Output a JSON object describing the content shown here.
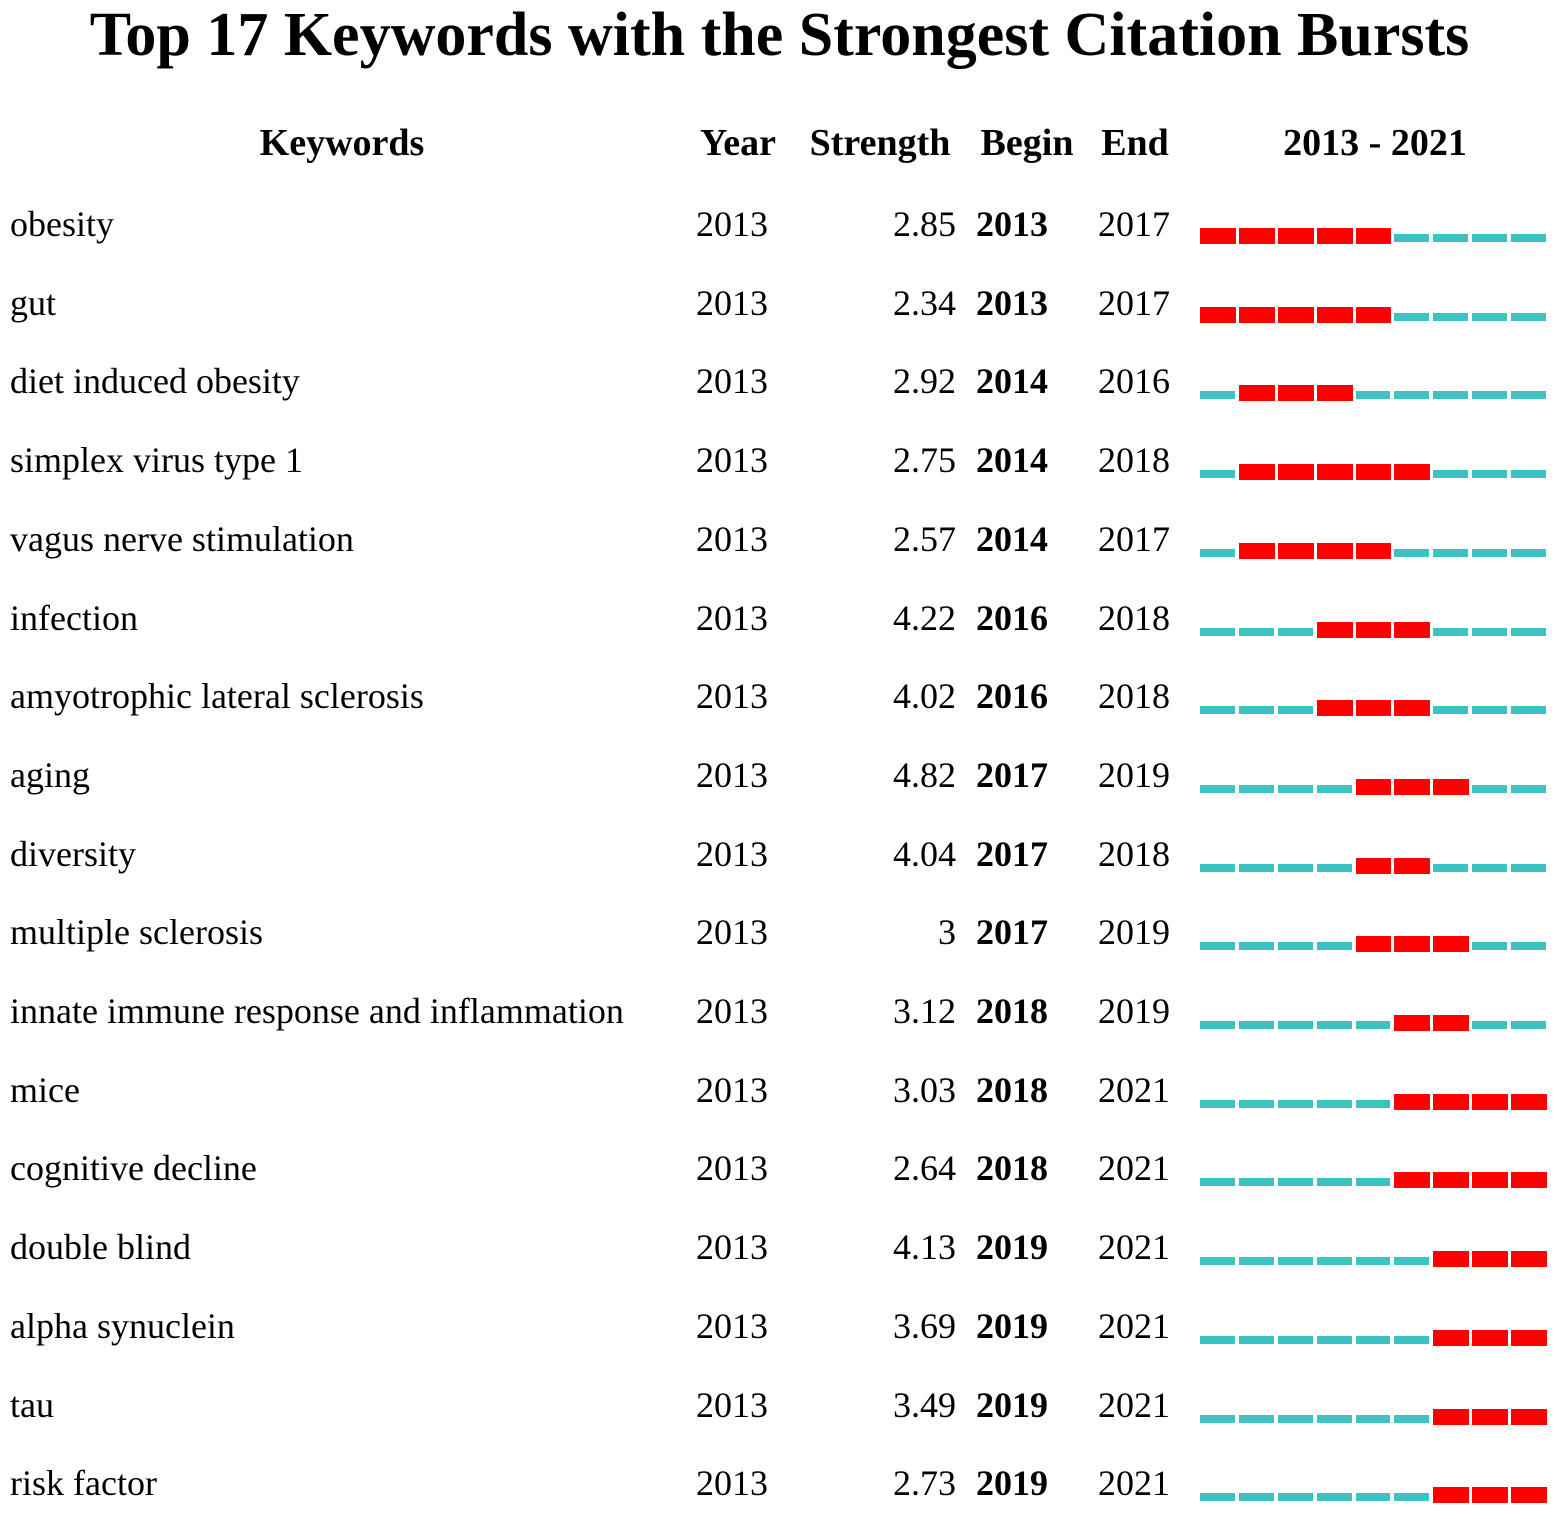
{
  "chart_data": {
    "type": "table",
    "title": "Top 17 Keywords with the Strongest Citation Bursts",
    "columns": [
      "Keywords",
      "Year",
      "Strength",
      "Begin",
      "End",
      "2013 - 2021"
    ],
    "year_range": [
      2013,
      2021
    ],
    "colors": {
      "burst": "#ff0000",
      "baseline": "#3cc2c2"
    },
    "rows": [
      {
        "keyword": "obesity",
        "year": "2013",
        "strength": "2.85",
        "begin": "2013",
        "end": "2017"
      },
      {
        "keyword": "gut",
        "year": "2013",
        "strength": "2.34",
        "begin": "2013",
        "end": "2017"
      },
      {
        "keyword": "diet induced obesity",
        "year": "2013",
        "strength": "2.92",
        "begin": "2014",
        "end": "2016"
      },
      {
        "keyword": "simplex virus type 1",
        "year": "2013",
        "strength": "2.75",
        "begin": "2014",
        "end": "2018"
      },
      {
        "keyword": "vagus nerve stimulation",
        "year": "2013",
        "strength": "2.57",
        "begin": "2014",
        "end": "2017"
      },
      {
        "keyword": "infection",
        "year": "2013",
        "strength": "4.22",
        "begin": "2016",
        "end": "2018"
      },
      {
        "keyword": "amyotrophic lateral sclerosis",
        "year": "2013",
        "strength": "4.02",
        "begin": "2016",
        "end": "2018"
      },
      {
        "keyword": "aging",
        "year": "2013",
        "strength": "4.82",
        "begin": "2017",
        "end": "2019"
      },
      {
        "keyword": "diversity",
        "year": "2013",
        "strength": "4.04",
        "begin": "2017",
        "end": "2018"
      },
      {
        "keyword": "multiple sclerosis",
        "year": "2013",
        "strength": "3",
        "begin": "2017",
        "end": "2019"
      },
      {
        "keyword": "innate immune response and inflammation",
        "year": "2013",
        "strength": "3.12",
        "begin": "2018",
        "end": "2019"
      },
      {
        "keyword": "mice",
        "year": "2013",
        "strength": "3.03",
        "begin": "2018",
        "end": "2021"
      },
      {
        "keyword": "cognitive decline",
        "year": "2013",
        "strength": "2.64",
        "begin": "2018",
        "end": "2021"
      },
      {
        "keyword": "double blind",
        "year": "2013",
        "strength": "4.13",
        "begin": "2019",
        "end": "2021"
      },
      {
        "keyword": "alpha synuclein",
        "year": "2013",
        "strength": "3.69",
        "begin": "2019",
        "end": "2021"
      },
      {
        "keyword": "tau",
        "year": "2013",
        "strength": "3.49",
        "begin": "2019",
        "end": "2021"
      },
      {
        "keyword": "risk factor",
        "year": "2013",
        "strength": "2.73",
        "begin": "2019",
        "end": "2021"
      }
    ]
  }
}
